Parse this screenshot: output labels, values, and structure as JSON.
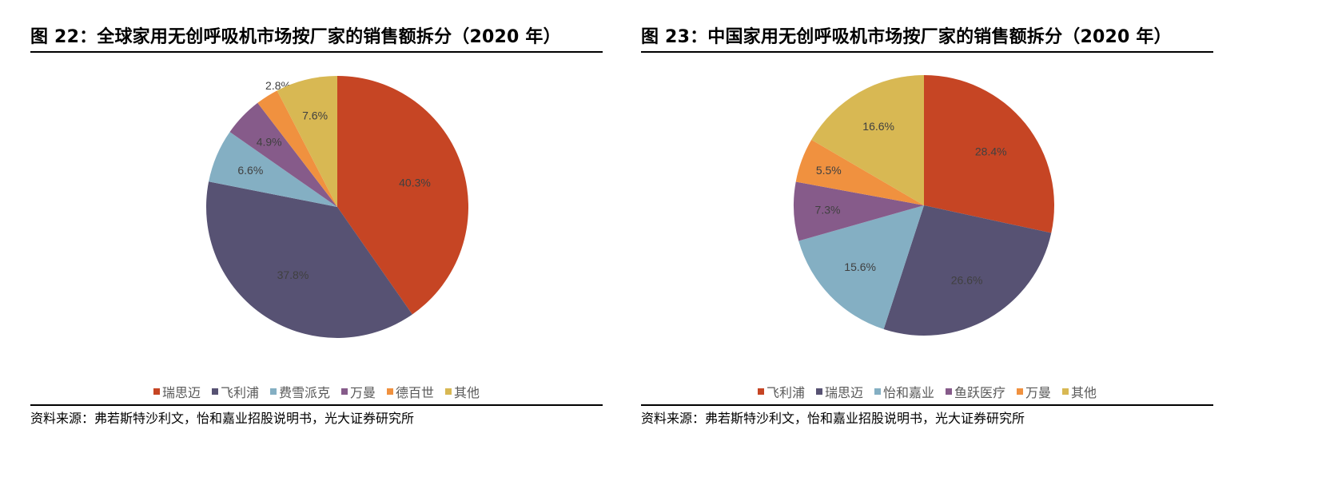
{
  "chart_data": [
    {
      "type": "pie",
      "title": "图 22：全球家用无创呼吸机市场按厂家的销售额拆分（2020 年）",
      "categories": [
        "瑞思迈",
        "飞利浦",
        "费雪派克",
        "万曼",
        "德百世",
        "其他"
      ],
      "values": [
        40.3,
        37.8,
        6.6,
        4.9,
        2.8,
        7.6
      ],
      "labels": [
        "40.3%",
        "37.8%",
        "6.6%",
        "4.9%",
        "2.8%",
        "7.6%"
      ],
      "colors": [
        "#C64524",
        "#575273",
        "#84AFC3",
        "#865B8A",
        "#F0913F",
        "#D8B853"
      ],
      "legend_position": "bottom",
      "source": "资料来源：弗若斯特沙利文，怡和嘉业招股说明书，光大证券研究所"
    },
    {
      "type": "pie",
      "title": "图 23：中国家用无创呼吸机市场按厂家的销售额拆分（2020 年）",
      "categories": [
        "飞利浦",
        "瑞思迈",
        "怡和嘉业",
        "鱼跃医疗",
        "万曼",
        "其他"
      ],
      "values": [
        28.4,
        26.6,
        15.6,
        7.3,
        5.5,
        16.6
      ],
      "labels": [
        "28.4%",
        "26.6%",
        "15.6%",
        "7.3%",
        "5.5%",
        "16.6%"
      ],
      "colors": [
        "#C64524",
        "#575273",
        "#84AFC3",
        "#865B8A",
        "#F0913F",
        "#D8B853"
      ],
      "legend_position": "bottom",
      "source": "资料来源：弗若斯特沙利文，怡和嘉业招股说明书，光大证券研究所"
    }
  ],
  "left": {
    "title": "图 22：全球家用无创呼吸机市场按厂家的销售额拆分（2020 年）",
    "legend": [
      "瑞思迈",
      "飞利浦",
      "费雪派克",
      "万曼",
      "德百世",
      "其他"
    ],
    "source": "资料来源：弗若斯特沙利文，怡和嘉业招股说明书，光大证券研究所"
  },
  "right": {
    "title": "图 23：中国家用无创呼吸机市场按厂家的销售额拆分（2020 年）",
    "legend": [
      "飞利浦",
      "瑞思迈",
      "怡和嘉业",
      "鱼跃医疗",
      "万曼",
      "其他"
    ],
    "source": "资料来源：弗若斯特沙利文，怡和嘉业招股说明书，光大证券研究所"
  }
}
